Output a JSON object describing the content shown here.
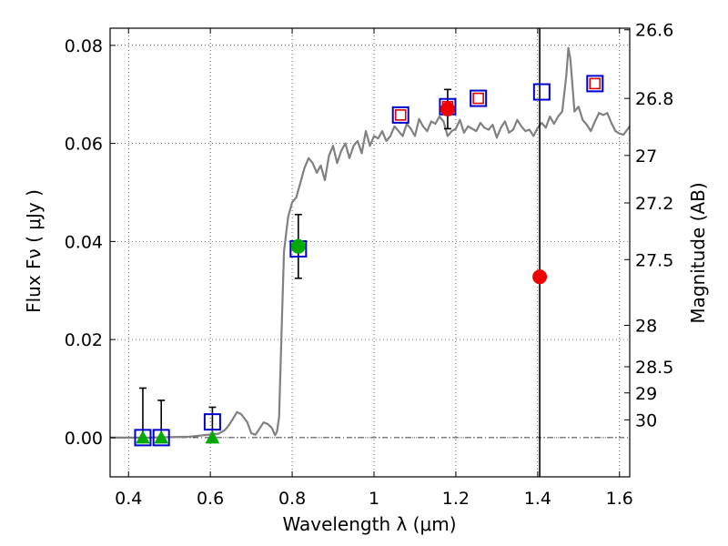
{
  "chart_data": {
    "type": "scatter",
    "xlabel": "Wavelength  λ (μm)",
    "ylabel": "Flux  Fν  ( μJy )",
    "y2label": "Magnitude (AB)",
    "xlim": [
      0.355,
      1.625
    ],
    "ylim": [
      -0.008,
      0.0835
    ],
    "grid": true,
    "x_ticks": [
      "0.4",
      "0.6",
      "0.8",
      "1",
      "1.2",
      "1.4",
      "1.6"
    ],
    "x_tick_values": [
      0.4,
      0.6,
      0.8,
      1.0,
      1.2,
      1.4,
      1.6
    ],
    "y_ticks": [
      "0.00",
      "0.02",
      "0.04",
      "0.06",
      "0.08"
    ],
    "y_tick_values": [
      0.0,
      0.02,
      0.04,
      0.06,
      0.08
    ],
    "mag_ticks": [
      "26.6",
      "26.8",
      "27",
      "27.2",
      "27.5",
      "28",
      "28.5",
      "29",
      "30"
    ],
    "mag_tick_values": [
      26.6,
      26.8,
      27.0,
      27.2,
      27.5,
      28.0,
      28.5,
      29.0,
      30.0
    ],
    "vertical_line_x": 1.405,
    "series": [
      {
        "kind": "line",
        "color": "#808080",
        "x": [
          0.355,
          0.45,
          0.55,
          0.62,
          0.635,
          0.645,
          0.655,
          0.665,
          0.675,
          0.69,
          0.7,
          0.71,
          0.72,
          0.73,
          0.74,
          0.75,
          0.758,
          0.763,
          0.768,
          0.775,
          0.78,
          0.79,
          0.8,
          0.81,
          0.82,
          0.83,
          0.84,
          0.85,
          0.86,
          0.87,
          0.88,
          0.89,
          0.9,
          0.91,
          0.92,
          0.93,
          0.94,
          0.95,
          0.96,
          0.97,
          0.98,
          0.99,
          1.0,
          1.01,
          1.02,
          1.03,
          1.04,
          1.05,
          1.06,
          1.07,
          1.08,
          1.09,
          1.1,
          1.11,
          1.12,
          1.13,
          1.14,
          1.15,
          1.16,
          1.17,
          1.18,
          1.19,
          1.2,
          1.21,
          1.22,
          1.23,
          1.24,
          1.25,
          1.26,
          1.27,
          1.28,
          1.29,
          1.3,
          1.31,
          1.32,
          1.33,
          1.34,
          1.35,
          1.36,
          1.37,
          1.38,
          1.39,
          1.4,
          1.41,
          1.42,
          1.43,
          1.44,
          1.45,
          1.46,
          1.47,
          1.475,
          1.48,
          1.49,
          1.5,
          1.51,
          1.52,
          1.53,
          1.54,
          1.55,
          1.56,
          1.57,
          1.58,
          1.59,
          1.6,
          1.61,
          1.625
        ],
        "y": [
          0.0,
          0.0,
          0.0002,
          0.0008,
          0.0015,
          0.0025,
          0.0038,
          0.0052,
          0.0048,
          0.0032,
          0.0009,
          0.0006,
          0.0018,
          0.0031,
          0.0028,
          0.002,
          0.0005,
          0.0012,
          0.0042,
          0.024,
          0.038,
          0.045,
          0.048,
          0.049,
          0.052,
          0.055,
          0.057,
          0.056,
          0.054,
          0.0555,
          0.0525,
          0.0575,
          0.0595,
          0.056,
          0.0585,
          0.06,
          0.057,
          0.0595,
          0.0605,
          0.058,
          0.0625,
          0.0595,
          0.0615,
          0.061,
          0.0625,
          0.0605,
          0.0615,
          0.0635,
          0.0625,
          0.0615,
          0.064,
          0.063,
          0.0615,
          0.065,
          0.0635,
          0.0625,
          0.0645,
          0.064,
          0.0655,
          0.0645,
          0.0615,
          0.0625,
          0.063,
          0.0648,
          0.0622,
          0.0635,
          0.063,
          0.0625,
          0.0642,
          0.0632,
          0.0628,
          0.0638,
          0.0612,
          0.0632,
          0.0645,
          0.0622,
          0.0628,
          0.0648,
          0.0635,
          0.0625,
          0.0628,
          0.0615,
          0.0632,
          0.0642,
          0.0632,
          0.0655,
          0.064,
          0.0655,
          0.0665,
          0.0738,
          0.0795,
          0.0772,
          0.0665,
          0.0675,
          0.0648,
          0.0638,
          0.0625,
          0.0645,
          0.0662,
          0.0658,
          0.0662,
          0.0642,
          0.0625,
          0.062,
          0.0618,
          0.0635
        ]
      },
      {
        "kind": "open-square",
        "color": "#0000cc",
        "x": [
          0.435,
          0.48,
          0.605,
          0.815,
          1.065,
          1.18,
          1.255,
          1.41,
          1.54
        ],
        "y": [
          0.0,
          0.0,
          0.0032,
          0.0385,
          0.0658,
          0.0675,
          0.0692,
          0.0705,
          0.0722
        ]
      },
      {
        "kind": "open-square-inner",
        "color": "#dd0000",
        "x": [
          1.065,
          1.18,
          1.255,
          1.54
        ],
        "y": [
          0.0658,
          0.0675,
          0.0692,
          0.0722
        ]
      },
      {
        "kind": "triangle",
        "color": "#00aa00",
        "x": [
          0.435,
          0.48,
          0.605
        ],
        "y": [
          0.0,
          0.0,
          0.0
        ]
      },
      {
        "kind": "filled-circle",
        "color": "#00aa00",
        "x": [
          0.815
        ],
        "y": [
          0.039
        ]
      },
      {
        "kind": "filled-circle",
        "color": "#ee0000",
        "x": [
          1.18,
          1.405
        ],
        "y": [
          0.067,
          0.0328
        ]
      }
    ],
    "error_bars": {
      "color": "#000000",
      "x": [
        0.435,
        0.48,
        0.605,
        0.815,
        1.18
      ],
      "y_low": [
        0.0,
        0.0,
        0.0,
        0.0325,
        0.063
      ],
      "y_high": [
        0.0101,
        0.0076,
        0.0062,
        0.0455,
        0.071
      ]
    }
  }
}
